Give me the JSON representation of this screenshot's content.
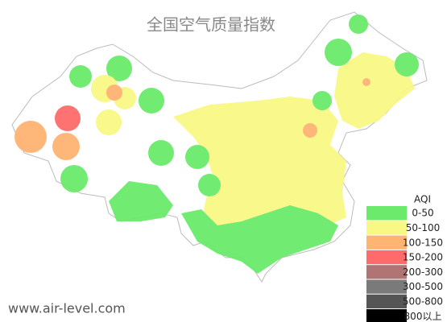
{
  "title": "全国空气质量指数",
  "legend": {
    "title": "AQI",
    "items": [
      {
        "label": "0-50",
        "color": "#6bea6b"
      },
      {
        "label": "50-100",
        "color": "#f8f885"
      },
      {
        "label": "100-150",
        "color": "#ffb472"
      },
      {
        "label": "150-200",
        "color": "#ff6b6b"
      },
      {
        "label": "200-300",
        "color": "#b07474"
      },
      {
        "label": "300-500",
        "color": "#7a7a7a"
      },
      {
        "label": "500-800",
        "color": "#555555"
      },
      {
        "label": "800以上",
        "color": "#000000"
      }
    ]
  },
  "watermark": "www.air-level.com"
}
